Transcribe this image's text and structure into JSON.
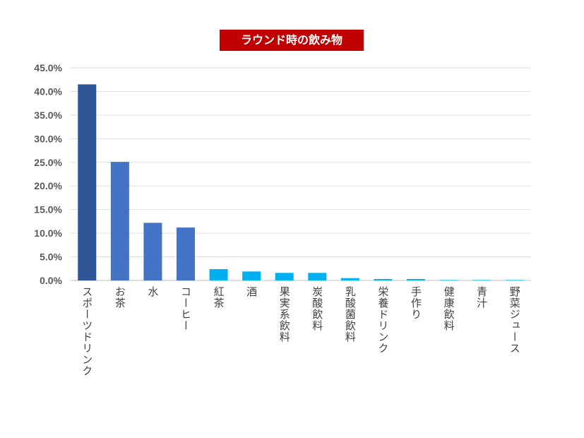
{
  "chart_data": {
    "type": "bar",
    "title": "ラウンド時の飲み物",
    "xlabel": "",
    "ylabel": "",
    "ylim": [
      0,
      45
    ],
    "yticks": [
      "0.0%",
      "5.0%",
      "10.0%",
      "15.0%",
      "20.0%",
      "25.0%",
      "30.0%",
      "35.0%",
      "40.0%",
      "45.0%"
    ],
    "grid": true,
    "categories": [
      "スポーツドリンク",
      "お茶",
      "水",
      "コーヒー",
      "紅茶",
      "酒",
      "果実系飲料",
      "炭酸飲料",
      "乳酸菌飲料",
      "栄養ドリンク",
      "手作り",
      "健康飲料",
      "青汁",
      "野菜ジュース"
    ],
    "values": [
      41.5,
      25.1,
      12.2,
      11.2,
      2.4,
      1.9,
      1.6,
      1.6,
      0.5,
      0.3,
      0.3,
      0.1,
      0.1,
      0.1
    ],
    "colors": [
      "#2f5597",
      "#4472c4",
      "#4472c4",
      "#4472c4",
      "#00b0f0",
      "#00b0f0",
      "#00b0f0",
      "#00b0f0",
      "#00b0f0",
      "#00b0f0",
      "#00b0f0",
      "#00b0f0",
      "#00b0f0",
      "#00b0f0"
    ]
  }
}
